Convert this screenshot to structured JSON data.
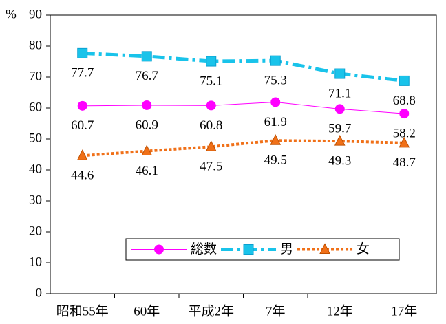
{
  "chart_data": {
    "type": "line",
    "y_unit": "%",
    "categories": [
      "昭和55年",
      "60年",
      "平成2年",
      "7年",
      "12年",
      "17年"
    ],
    "series": [
      {
        "name": "総数",
        "color": "#ff00ff",
        "marker": "circle",
        "dash": "solid",
        "values": [
          60.7,
          60.9,
          60.8,
          61.9,
          59.7,
          58.2
        ]
      },
      {
        "name": "男",
        "color": "#19c3ea",
        "marker": "square",
        "dash": "dashdot",
        "values": [
          77.7,
          76.7,
          75.1,
          75.3,
          71.1,
          68.8
        ]
      },
      {
        "name": "女",
        "color": "#f07018",
        "marker": "triangle",
        "dash": "dotted",
        "values": [
          44.6,
          46.1,
          47.5,
          49.5,
          49.3,
          48.7
        ]
      }
    ],
    "ylim": [
      0,
      90
    ],
    "yticks": [
      0,
      10,
      20,
      30,
      40,
      50,
      60,
      70,
      80,
      90
    ],
    "grid": false,
    "legend": "bottom"
  }
}
